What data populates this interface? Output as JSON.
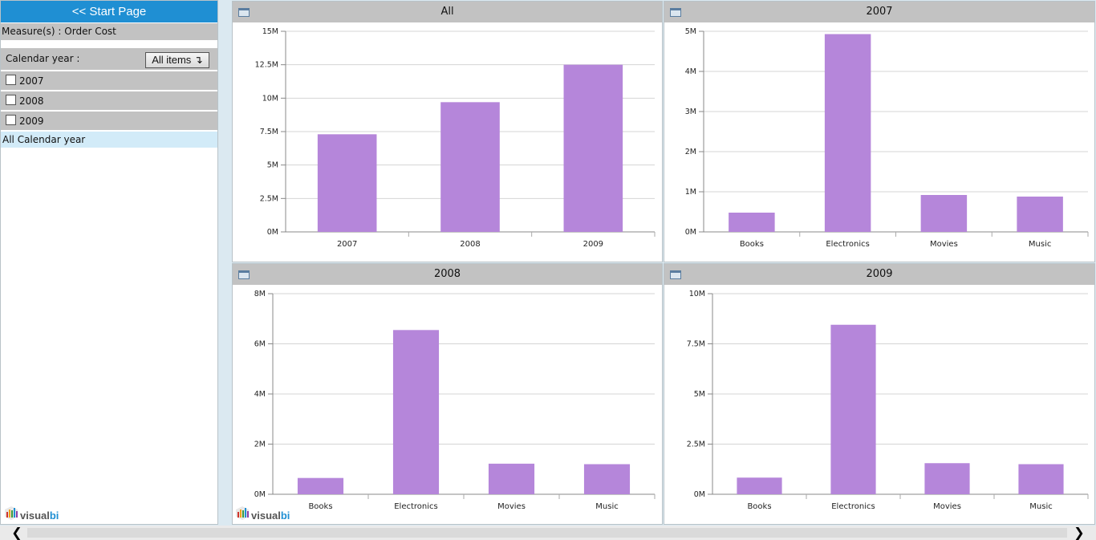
{
  "sidebar": {
    "start_page_label": "<< Start Page",
    "measure_label": "Measure(s) : Order Cost",
    "calendar_label": "Calendar year :",
    "all_items_label": "All items ↴",
    "years": [
      "2007",
      "2008",
      "2009"
    ],
    "all_calendar_label": "All Calendar year"
  },
  "logo": {
    "text_a": "visual",
    "text_b": "bi"
  },
  "colors": {
    "bar": "#b586da",
    "header": "#c2c2c2",
    "accent": "#1f8fd3"
  },
  "chart_data": [
    {
      "type": "bar",
      "title": "All",
      "categories": [
        "2007",
        "2008",
        "2009"
      ],
      "values": [
        7300000,
        9700000,
        12500000
      ],
      "ylim": [
        0,
        15000000
      ],
      "yticks": [
        "0M",
        "2.5M",
        "5M",
        "7.5M",
        "10M",
        "12.5M",
        "15M"
      ],
      "grid": true
    },
    {
      "type": "bar",
      "title": "2007",
      "categories": [
        "Books",
        "Electronics",
        "Movies",
        "Music"
      ],
      "values": [
        480000,
        4930000,
        920000,
        880000
      ],
      "ylim": [
        0,
        5000000
      ],
      "yticks": [
        "0M",
        "1M",
        "2M",
        "3M",
        "4M",
        "5M"
      ],
      "grid": true
    },
    {
      "type": "bar",
      "title": "2008",
      "categories": [
        "Books",
        "Electronics",
        "Movies",
        "Music"
      ],
      "values": [
        650000,
        6550000,
        1220000,
        1200000
      ],
      "ylim": [
        0,
        8000000
      ],
      "yticks": [
        "0M",
        "2M",
        "4M",
        "6M",
        "8M"
      ],
      "grid": true
    },
    {
      "type": "bar",
      "title": "2009",
      "categories": [
        "Books",
        "Electronics",
        "Movies",
        "Music"
      ],
      "values": [
        830000,
        8450000,
        1550000,
        1500000
      ],
      "ylim": [
        0,
        10000000
      ],
      "yticks": [
        "0M",
        "2.5M",
        "5M",
        "7.5M",
        "10M"
      ],
      "grid": true
    }
  ]
}
